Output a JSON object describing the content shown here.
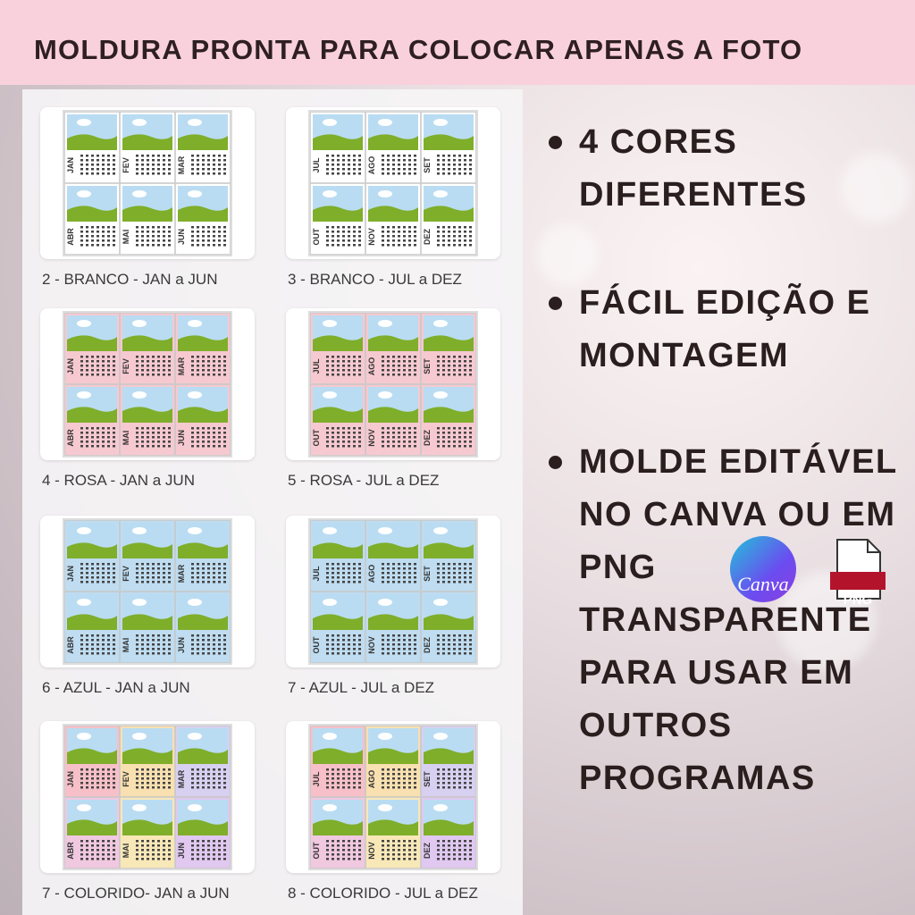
{
  "header": {
    "title": "MOLDURA PRONTA PARA COLOCAR APENAS A FOTO"
  },
  "products": [
    {
      "caption": "2 - BRANCO - JAN a JUN",
      "colors": [
        "#ffffff",
        "#ffffff",
        "#ffffff",
        "#ffffff",
        "#ffffff",
        "#ffffff"
      ],
      "months": [
        "JAN",
        "FEV",
        "MAR",
        "ABR",
        "MAI",
        "JUN"
      ]
    },
    {
      "caption": "3 - BRANCO - JUL a DEZ",
      "colors": [
        "#ffffff",
        "#ffffff",
        "#ffffff",
        "#ffffff",
        "#ffffff",
        "#ffffff"
      ],
      "months": [
        "JUL",
        "AGO",
        "SET",
        "OUT",
        "NOV",
        "DEZ"
      ]
    },
    {
      "caption": "4 - ROSA - JAN a JUN",
      "colors": [
        "#f6c9d0",
        "#f6c9d0",
        "#f6c9d0",
        "#f6c9d0",
        "#f6c9d0",
        "#f6c9d0"
      ],
      "months": [
        "JAN",
        "FEV",
        "MAR",
        "ABR",
        "MAI",
        "JUN"
      ]
    },
    {
      "caption": "5 - ROSA - JUL a DEZ",
      "colors": [
        "#f6c9d0",
        "#f6c9d0",
        "#f6c9d0",
        "#f6c9d0",
        "#f6c9d0",
        "#f6c9d0"
      ],
      "months": [
        "JUL",
        "AGO",
        "SET",
        "OUT",
        "NOV",
        "DEZ"
      ]
    },
    {
      "caption": "6 - AZUL - JAN a JUN",
      "colors": [
        "#bfdcf0",
        "#bfdcf0",
        "#bfdcf0",
        "#bfdcf0",
        "#bfdcf0",
        "#bfdcf0"
      ],
      "months": [
        "JAN",
        "FEV",
        "MAR",
        "ABR",
        "MAI",
        "JUN"
      ]
    },
    {
      "caption": "7 - AZUL - JUL a DEZ",
      "colors": [
        "#bfdcf0",
        "#bfdcf0",
        "#bfdcf0",
        "#bfdcf0",
        "#bfdcf0",
        "#bfdcf0"
      ],
      "months": [
        "JUL",
        "AGO",
        "SET",
        "OUT",
        "NOV",
        "DEZ"
      ]
    },
    {
      "caption": "7 - COLORIDO- JAN a JUN",
      "colors": [
        "#f7c0c8",
        "#f8e0b0",
        "#d8d0f0",
        "#f0c8e0",
        "#f8e8b8",
        "#e0c8f0"
      ],
      "months": [
        "JAN",
        "FEV",
        "MAR",
        "ABR",
        "MAI",
        "JUN"
      ]
    },
    {
      "caption": "8 - COLORIDO - JUL a DEZ",
      "colors": [
        "#f7c0c8",
        "#f8e0b0",
        "#d8d0f0",
        "#f0c8e0",
        "#f8e8b8",
        "#e0c8f0"
      ],
      "months": [
        "JUL",
        "AGO",
        "SET",
        "OUT",
        "NOV",
        "DEZ"
      ]
    }
  ],
  "features": [
    {
      "text": "4 CORES DIFERENTES"
    },
    {
      "text": "FÁCIL EDIÇÃO E MONTAGEM"
    },
    {
      "text_before": "MOLDE EDITÁVEL NO CANVA OU EM PNG",
      "text_after": "TRANSPARENTE PARA USAR EM OUTROS PROGRAMAS"
    }
  ],
  "icons": {
    "canva": "Canva",
    "png": "PNG"
  }
}
